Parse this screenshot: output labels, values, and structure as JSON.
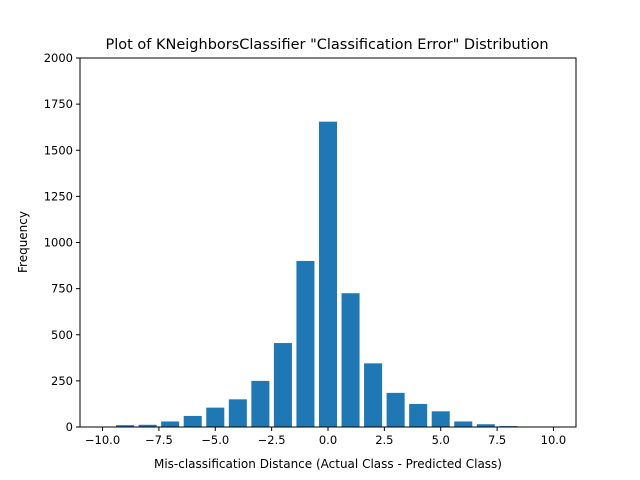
{
  "chart_data": {
    "type": "bar",
    "title": "Plot of KNeighborsClassifier \"Classification Error\" Distribution",
    "xlabel": "Mis-classification Distance (Actual Class - Predicted Class)",
    "ylabel": "Frequency",
    "xlim": [
      -11,
      11
    ],
    "ylim": [
      0,
      2000
    ],
    "bar_width": 0.8,
    "color": "#1f77b4",
    "grid": false,
    "x": [
      -10,
      -9,
      -8,
      -7,
      -6,
      -5,
      -4,
      -3,
      -2,
      -1,
      0,
      1,
      2,
      3,
      4,
      5,
      6,
      7,
      8,
      9,
      10
    ],
    "values": [
      0,
      10,
      12,
      30,
      60,
      105,
      150,
      250,
      455,
      900,
      1655,
      725,
      345,
      185,
      125,
      85,
      30,
      15,
      5,
      0,
      0
    ],
    "xticks": [
      -10.0,
      -7.5,
      -5.0,
      -2.5,
      0.0,
      2.5,
      5.0,
      7.5,
      10.0
    ],
    "xtick_labels": [
      "−10.0",
      "−7.5",
      "−5.0",
      "−2.5",
      "0.0",
      "2.5",
      "5.0",
      "7.5",
      "10.0"
    ],
    "yticks": [
      0,
      250,
      500,
      750,
      1000,
      1250,
      1500,
      1750,
      2000
    ],
    "ytick_labels": [
      "0",
      "250",
      "500",
      "750",
      "1000",
      "1250",
      "1500",
      "1750",
      "2000"
    ]
  }
}
